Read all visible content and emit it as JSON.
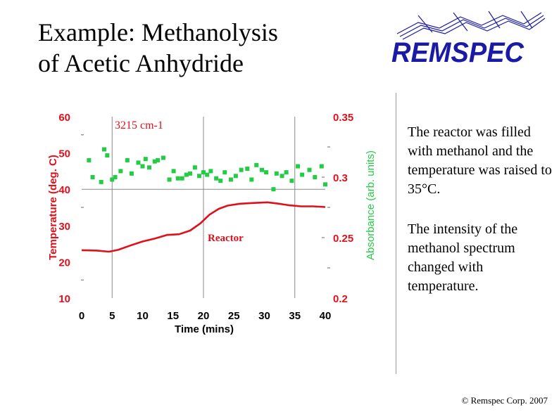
{
  "slide": {
    "title_line1": "Example: Methanolysis",
    "title_line2": "of Acetic Anhydride",
    "logo_text": "REMSPEC",
    "note1": "The reactor was filled with methanol and the temperature was raised to 35°C.",
    "note2": "The intensity of the methanol spectrum changed with temperature.",
    "footer": "© Remspec Corp. 2007"
  },
  "colors": {
    "axis_text": "#e0101a",
    "absorbance_series": "#22cc44",
    "temperature_series": "#e0101a",
    "grid": "#888888",
    "logo": "#1a1aa6"
  },
  "chart_data": {
    "type": "line",
    "xlabel": "Time (mins)",
    "ylabel_left": "Temperature (deg. C)",
    "ylabel_right": "Absorbance (arb. units)",
    "xlim": [
      0,
      40
    ],
    "ylim_left": [
      10,
      60
    ],
    "ylim_right": [
      0.2,
      0.35
    ],
    "x_ticks": [
      "0",
      "5",
      "10",
      "15",
      "20",
      "25",
      "30",
      "35",
      "40"
    ],
    "y_left_ticks": [
      "10",
      "20",
      "30",
      "40",
      "50",
      "60"
    ],
    "y_right_ticks": [
      "0.2",
      "0.25",
      "0.3",
      "0.35"
    ],
    "grid": "vertical lines at 5, 20, 35 min; horizontal line at 40 deg. C",
    "annotations": [
      "3215 cm-1",
      "Reactor"
    ],
    "series": [
      {
        "name": "3215 cm-1",
        "axis": "right",
        "style": "markers",
        "x": [
          1.2,
          1.8,
          3.2,
          3.7,
          4.2,
          5.0,
          5.5,
          6.4,
          7.5,
          8.2,
          9.3,
          10.0,
          10.5,
          11.1,
          12.0,
          12.5,
          13.4,
          14.4,
          15.1,
          15.8,
          16.5,
          17.2,
          17.8,
          18.6,
          19.3,
          20.0,
          20.6,
          21.2,
          22.1,
          22.8,
          23.5,
          24.5,
          25.3,
          26.2,
          27.2,
          27.9,
          28.7,
          29.6,
          30.3,
          31.5,
          32.0,
          32.9,
          33.6,
          34.5,
          35.5,
          36.2,
          37.4,
          38.3,
          39.4,
          40.0
        ],
        "y": [
          0.314,
          0.3,
          0.296,
          0.323,
          0.318,
          0.298,
          0.3,
          0.305,
          0.314,
          0.303,
          0.312,
          0.309,
          0.315,
          0.308,
          0.313,
          0.314,
          0.316,
          0.298,
          0.305,
          0.299,
          0.299,
          0.302,
          0.303,
          0.308,
          0.301,
          0.304,
          0.302,
          0.305,
          0.299,
          0.297,
          0.304,
          0.298,
          0.301,
          0.306,
          0.307,
          0.298,
          0.31,
          0.306,
          0.304,
          0.29,
          0.303,
          0.301,
          0.304,
          0.297,
          0.309,
          0.302,
          0.306,
          0.3,
          0.309,
          0.294
        ]
      },
      {
        "name": "Reactor",
        "axis": "left",
        "style": "line",
        "x": [
          0,
          2.5,
          4.5,
          6.0,
          8.0,
          10.0,
          12.0,
          14.0,
          16.0,
          17.8,
          19.5,
          21.0,
          22.5,
          24.0,
          26.0,
          28.0,
          30.5,
          32.0,
          34.0,
          36.0,
          38.0,
          40.0
        ],
        "y": [
          23.2,
          23.1,
          22.8,
          23.3,
          24.5,
          25.6,
          26.4,
          27.4,
          27.6,
          28.6,
          30.6,
          33.0,
          34.6,
          35.5,
          36.0,
          36.2,
          36.4,
          36.1,
          35.6,
          35.3,
          35.3,
          35.1
        ]
      }
    ]
  }
}
